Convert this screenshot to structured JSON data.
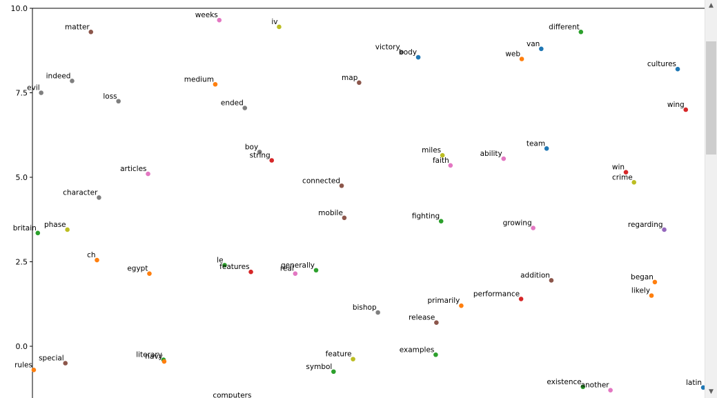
{
  "chart_data": {
    "type": "scatter",
    "title": "",
    "xlabel": "",
    "ylabel": "",
    "ylim": [
      -1.5,
      10.0
    ],
    "xlim": [
      0.0,
      1.0
    ],
    "yticks": [
      "10.0",
      "7.5",
      "5.0",
      "2.5",
      "0.0"
    ],
    "ytick_values": [
      10.0,
      7.5,
      5.0,
      2.5,
      0.0
    ],
    "grid": false,
    "points": [
      {
        "label": "weeks",
        "x": 0.278,
        "y": 9.65,
        "color": "#e377c2"
      },
      {
        "label": "iv",
        "x": 0.367,
        "y": 9.45,
        "color": "#bcbd22"
      },
      {
        "label": "matter",
        "x": 0.087,
        "y": 9.3,
        "color": "#8c564b"
      },
      {
        "label": "different",
        "x": 0.816,
        "y": 9.3,
        "color": "#2ca02c"
      },
      {
        "label": "van",
        "x": 0.757,
        "y": 8.8,
        "color": "#1f77b4"
      },
      {
        "label": "victory",
        "x": 0.549,
        "y": 8.7,
        "color": "#7f7f7f"
      },
      {
        "label": "body",
        "x": 0.574,
        "y": 8.55,
        "color": "#1f77b4"
      },
      {
        "label": "web",
        "x": 0.728,
        "y": 8.5,
        "color": "#ff7f0e"
      },
      {
        "label": "cultures",
        "x": 0.96,
        "y": 8.2,
        "color": "#1f77b4"
      },
      {
        "label": "indeed",
        "x": 0.059,
        "y": 7.85,
        "color": "#7f7f7f"
      },
      {
        "label": "map",
        "x": 0.486,
        "y": 7.8,
        "color": "#8c564b"
      },
      {
        "label": "medium",
        "x": 0.272,
        "y": 7.75,
        "color": "#ff7f0e"
      },
      {
        "label": "evil",
        "x": 0.013,
        "y": 7.5,
        "color": "#7f7f7f"
      },
      {
        "label": "loss",
        "x": 0.128,
        "y": 7.25,
        "color": "#7f7f7f"
      },
      {
        "label": "ended",
        "x": 0.316,
        "y": 7.05,
        "color": "#7f7f7f"
      },
      {
        "label": "wing",
        "x": 0.972,
        "y": 7.0,
        "color": "#d62728"
      },
      {
        "label": "team",
        "x": 0.765,
        "y": 5.85,
        "color": "#1f77b4"
      },
      {
        "label": "boy",
        "x": 0.338,
        "y": 5.75,
        "color": "#7f7f7f"
      },
      {
        "label": "miles",
        "x": 0.61,
        "y": 5.65,
        "color": "#bcbd22"
      },
      {
        "label": "ability",
        "x": 0.701,
        "y": 5.55,
        "color": "#e377c2"
      },
      {
        "label": "string",
        "x": 0.356,
        "y": 5.5,
        "color": "#d62728"
      },
      {
        "label": "faith",
        "x": 0.622,
        "y": 5.35,
        "color": "#e377c2"
      },
      {
        "label": "win",
        "x": 0.883,
        "y": 5.15,
        "color": "#d62728"
      },
      {
        "label": "articles",
        "x": 0.172,
        "y": 5.1,
        "color": "#e377c2"
      },
      {
        "label": "crime",
        "x": 0.895,
        "y": 4.85,
        "color": "#bcbd22"
      },
      {
        "label": "connected",
        "x": 0.46,
        "y": 4.75,
        "color": "#8c564b"
      },
      {
        "label": "character",
        "x": 0.099,
        "y": 4.4,
        "color": "#7f7f7f"
      },
      {
        "label": "mobile",
        "x": 0.464,
        "y": 3.8,
        "color": "#8c564b"
      },
      {
        "label": "fighting",
        "x": 0.608,
        "y": 3.7,
        "color": "#2ca02c"
      },
      {
        "label": "growing",
        "x": 0.745,
        "y": 3.5,
        "color": "#e377c2"
      },
      {
        "label": "regarding",
        "x": 0.94,
        "y": 3.45,
        "color": "#9467bd"
      },
      {
        "label": "phase",
        "x": 0.052,
        "y": 3.45,
        "color": "#bcbd22"
      },
      {
        "label": "britain",
        "x": 0.008,
        "y": 3.35,
        "color": "#2ca02c"
      },
      {
        "label": "ch",
        "x": 0.096,
        "y": 2.55,
        "color": "#ff7f0e"
      },
      {
        "label": "le",
        "x": 0.286,
        "y": 2.4,
        "color": "#2ca02c"
      },
      {
        "label": "generally",
        "x": 0.422,
        "y": 2.25,
        "color": "#2ca02c"
      },
      {
        "label": "features",
        "x": 0.325,
        "y": 2.2,
        "color": "#d62728"
      },
      {
        "label": "egypt",
        "x": 0.174,
        "y": 2.15,
        "color": "#ff7f0e"
      },
      {
        "label": "real",
        "x": 0.391,
        "y": 2.15,
        "color": "#e377c2"
      },
      {
        "label": "addition",
        "x": 0.772,
        "y": 1.95,
        "color": "#8c564b"
      },
      {
        "label": "began",
        "x": 0.926,
        "y": 1.9,
        "color": "#ff7f0e"
      },
      {
        "label": "likely",
        "x": 0.921,
        "y": 1.5,
        "color": "#ff7f0e"
      },
      {
        "label": "performance",
        "x": 0.727,
        "y": 1.4,
        "color": "#d62728"
      },
      {
        "label": "primarily",
        "x": 0.638,
        "y": 1.2,
        "color": "#ff7f0e"
      },
      {
        "label": "bishop",
        "x": 0.514,
        "y": 1.0,
        "color": "#7f7f7f"
      },
      {
        "label": "release",
        "x": 0.601,
        "y": 0.7,
        "color": "#8c564b"
      },
      {
        "label": "examples",
        "x": 0.6,
        "y": -0.25,
        "color": "#2ca02c"
      },
      {
        "label": "feature",
        "x": 0.477,
        "y": -0.38,
        "color": "#bcbd22"
      },
      {
        "label": "literary",
        "x": 0.195,
        "y": -0.4,
        "color": "#2ca02c"
      },
      {
        "label": "navy",
        "x": 0.196,
        "y": -0.45,
        "color": "#ff7f0e"
      },
      {
        "label": "special",
        "x": 0.049,
        "y": -0.5,
        "color": "#8c564b"
      },
      {
        "label": "rules",
        "x": 0.002,
        "y": -0.7,
        "color": "#ff7f0e"
      },
      {
        "label": "symbol",
        "x": 0.448,
        "y": -0.75,
        "color": "#2ca02c"
      },
      {
        "label": "existence",
        "x": 0.819,
        "y": -1.2,
        "color": "#2ca02c"
      },
      {
        "label": "another",
        "x": 0.86,
        "y": -1.3,
        "color": "#e377c2"
      },
      {
        "label": "latin",
        "x": 0.998,
        "y": -1.22,
        "color": "#1f77b4"
      },
      {
        "label": "computers",
        "x": 0.328,
        "y": -1.6,
        "color": "#1f77b4"
      }
    ]
  }
}
